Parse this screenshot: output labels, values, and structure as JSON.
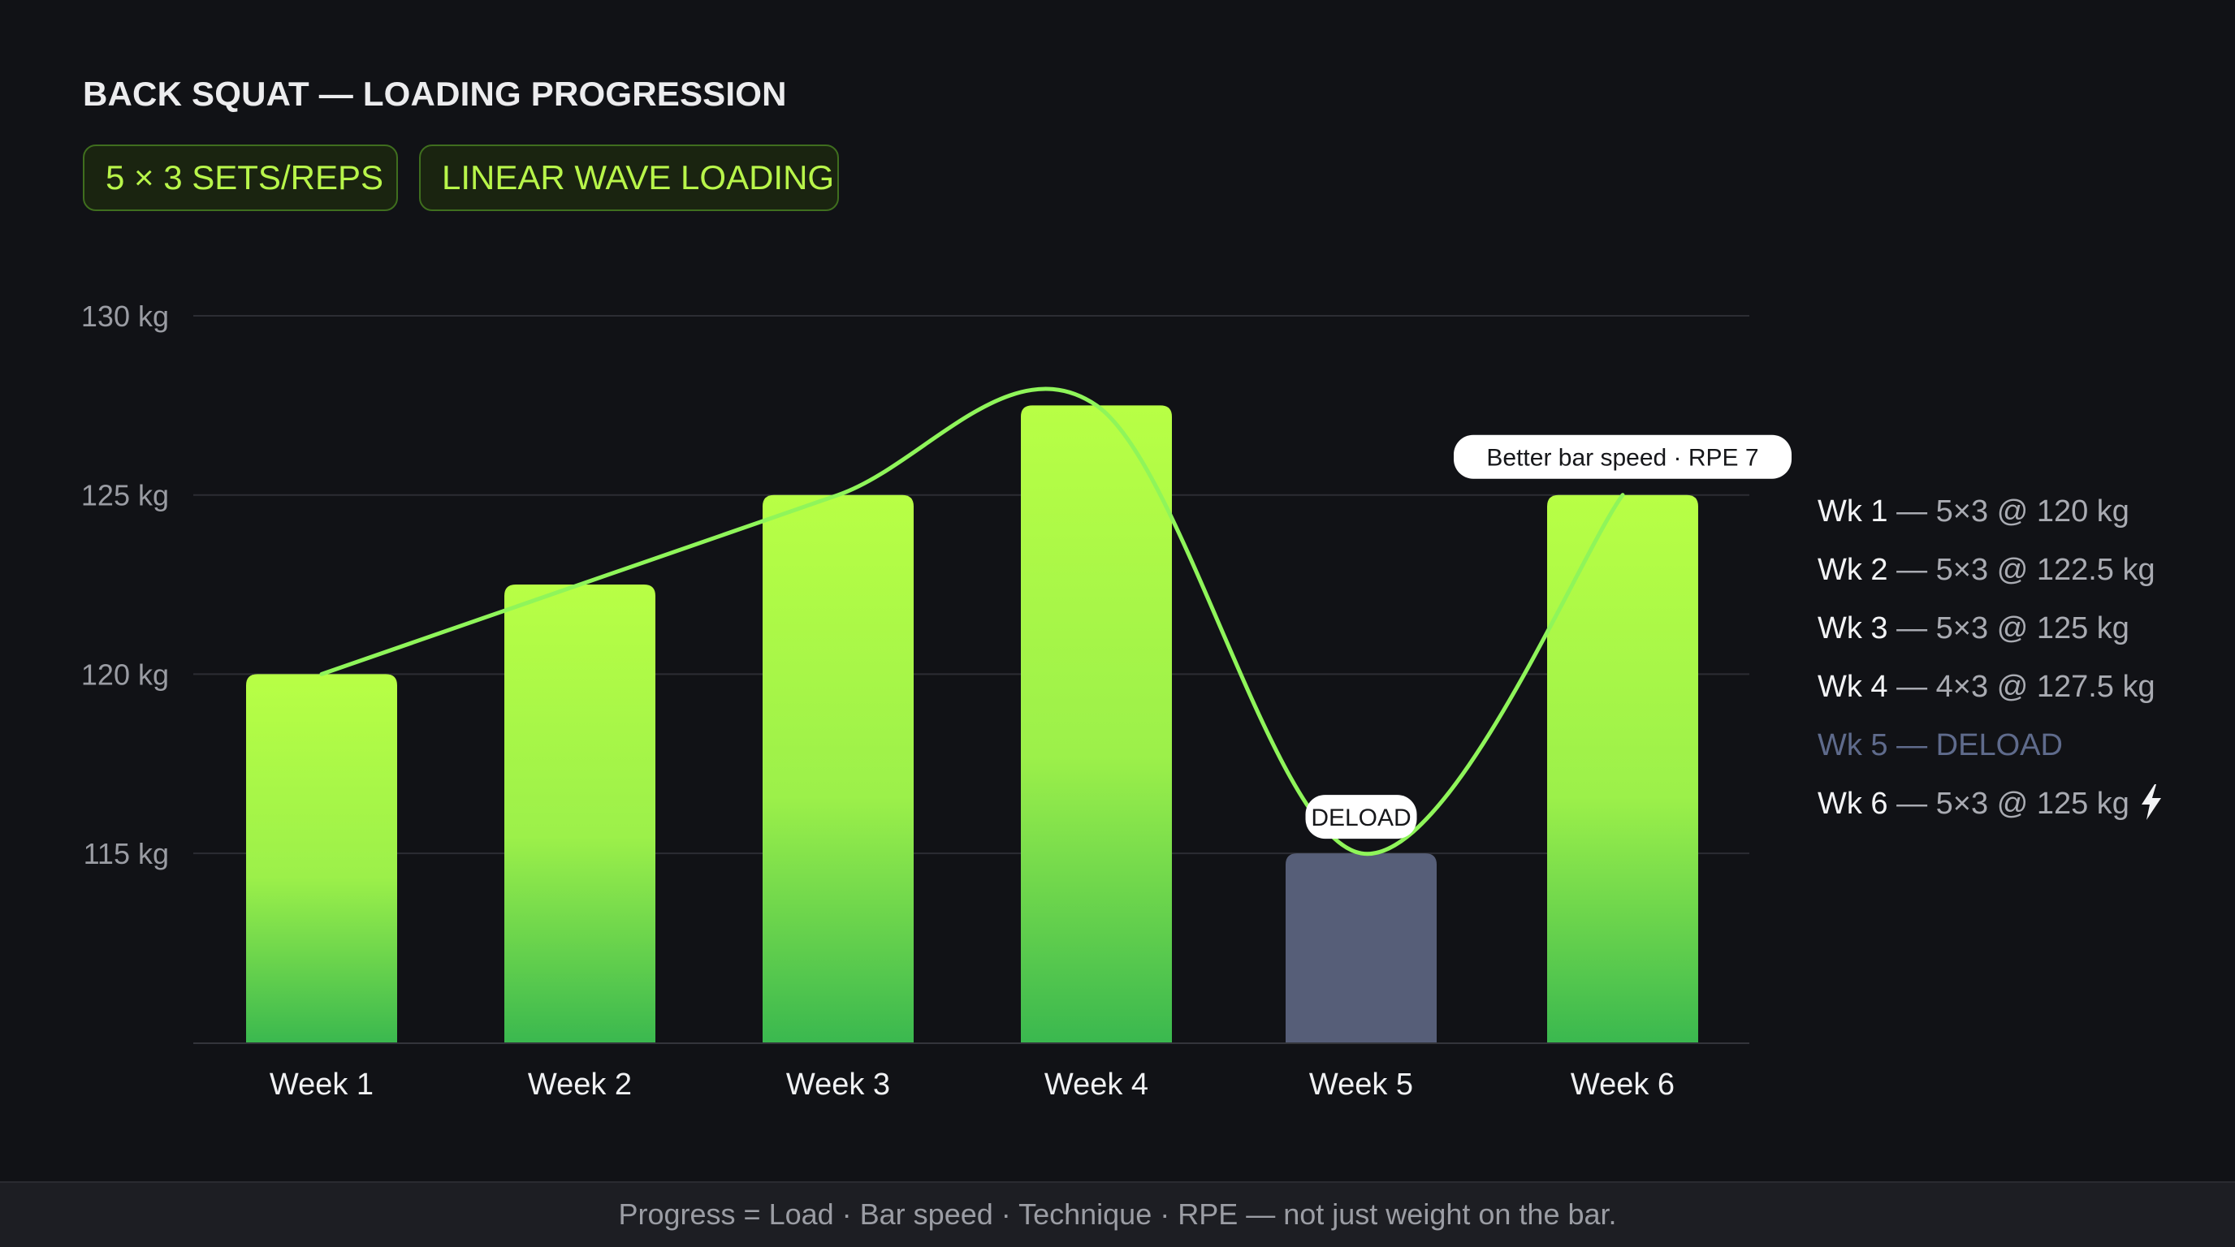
{
  "header": {
    "title": "BACK SQUAT — LOADING PROGRESSION",
    "chips": [
      "5 × 3 SETS/REPS",
      "LINEAR WAVE LOADING"
    ]
  },
  "chart_data": {
    "type": "bar",
    "categories": [
      "Week 1",
      "Week 2",
      "Week 3",
      "Week 4",
      "Week 5",
      "Week 6"
    ],
    "series": [
      {
        "values": [
          120,
          122.5,
          125,
          127.5,
          115,
          125
        ]
      }
    ],
    "trend_line": {
      "type": "line",
      "values": [
        120,
        122.5,
        125,
        127.5,
        115,
        125
      ]
    },
    "ylim": [
      109.7,
      130
    ],
    "yticks": [
      115,
      120,
      125,
      130
    ],
    "ytick_labels": [
      "115 kg",
      "120 kg",
      "125 kg",
      "130 kg"
    ],
    "grid": true,
    "colors": {
      "bar_top": "#b8ff45",
      "bar_bottom": "#3ab84f",
      "deload_bar": "#565e78",
      "line": "#8ff55a",
      "grid": "#2c2d33"
    },
    "highlight": {
      "category": "Week 5",
      "style": "deload"
    },
    "annotations": [
      {
        "category": "Week 5",
        "text": "DELOAD"
      },
      {
        "category": "Week 6",
        "text": "Better bar speed · RPE 7"
      }
    ]
  },
  "legend_list": [
    {
      "label": "Wk 1",
      "detail": "— 5×3 @ 120 kg",
      "muted": false,
      "icon": ""
    },
    {
      "label": "Wk 2",
      "detail": "— 5×3 @ 122.5 kg",
      "muted": false,
      "icon": ""
    },
    {
      "label": "Wk 3",
      "detail": "— 5×3 @ 125 kg",
      "muted": false,
      "icon": ""
    },
    {
      "label": "Wk 4",
      "detail": "— 4×3 @ 127.5 kg",
      "muted": false,
      "icon": ""
    },
    {
      "label": "Wk 5",
      "detail": "— DELOAD",
      "muted": true,
      "icon": ""
    },
    {
      "label": "Wk 6",
      "detail": "— 5×3 @ 125 kg",
      "muted": false,
      "icon": "lightning-bolt-icon"
    }
  ],
  "footer": {
    "text": "Progress = Load · Bar speed · Technique · RPE — not just weight on the bar."
  }
}
